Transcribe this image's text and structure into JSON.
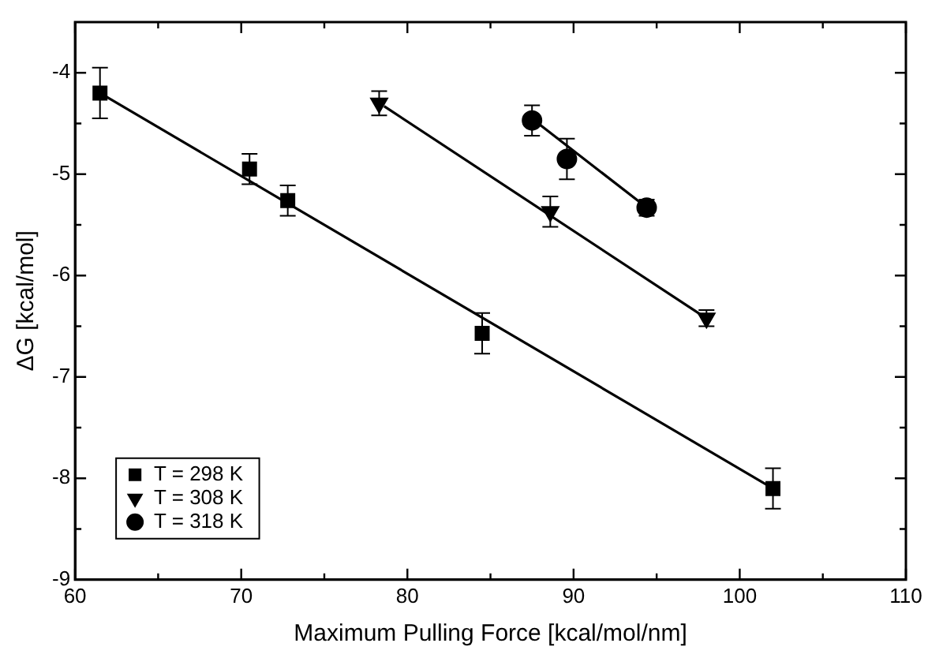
{
  "chart_data": {
    "type": "scatter",
    "xlabel": "Maximum Pulling Force [kcal/mol/nm]",
    "ylabel": "ΔG [kcal/mol]",
    "xlim": [
      60,
      110
    ],
    "xticks": [
      60,
      {
        "value": 65,
        "label": null
      },
      70,
      {
        "value": 75,
        "label": null
      },
      80,
      {
        "value": 85,
        "label": null
      },
      90,
      {
        "value": 95,
        "label": null
      },
      100,
      {
        "value": 105,
        "label": null
      },
      110
    ],
    "ylim": [
      -9,
      -3.5
    ],
    "yticks": [
      -9,
      {
        "value": -8.5,
        "label": null
      },
      -8,
      {
        "value": -7.5,
        "label": null
      },
      -7,
      {
        "value": -6.5,
        "label": null
      },
      -6,
      {
        "value": -5.5,
        "label": null
      },
      -5,
      {
        "value": -4.5,
        "label": null
      },
      -4
    ],
    "grid": false,
    "legend": "bottom left",
    "series": [
      {
        "name": "T = 298 K",
        "type": "scatter",
        "marker": "square",
        "color": "#000000",
        "x": [
          61.5,
          70.5,
          72.8,
          84.5,
          102
        ],
        "values": [
          -4.2,
          -4.95,
          -5.26,
          -6.57,
          -8.1
        ],
        "errors": [
          0.25,
          0.15,
          0.15,
          0.2,
          0.2
        ]
      },
      {
        "name": "T = 308 K",
        "type": "scatter",
        "marker": "triangle",
        "color": "#000000",
        "x": [
          78.3,
          88.6,
          98
        ],
        "values": [
          -4.3,
          -5.37,
          -6.42
        ],
        "errors": [
          0.12,
          0.15,
          0.08
        ]
      },
      {
        "name": "T = 318 K",
        "type": "scatter",
        "marker": "circle",
        "color": "#000000",
        "x": [
          87.5,
          89.6,
          94.4
        ],
        "values": [
          -4.47,
          -4.85,
          -5.33
        ],
        "errors": [
          0.15,
          0.2,
          0.08
        ]
      },
      {
        "type": "line",
        "marker": "none",
        "color": "#000000",
        "x": [
          61.5,
          102
        ],
        "values": [
          -4.2,
          -8.1
        ]
      },
      {
        "type": "line",
        "marker": "none",
        "color": "#000000",
        "x": [
          78.6,
          97.7
        ],
        "values": [
          -4.33,
          -6.39
        ]
      },
      {
        "type": "line",
        "marker": "none",
        "color": "#000000",
        "x": [
          87.8,
          94.1
        ],
        "values": [
          -4.49,
          -5.29
        ]
      }
    ]
  }
}
